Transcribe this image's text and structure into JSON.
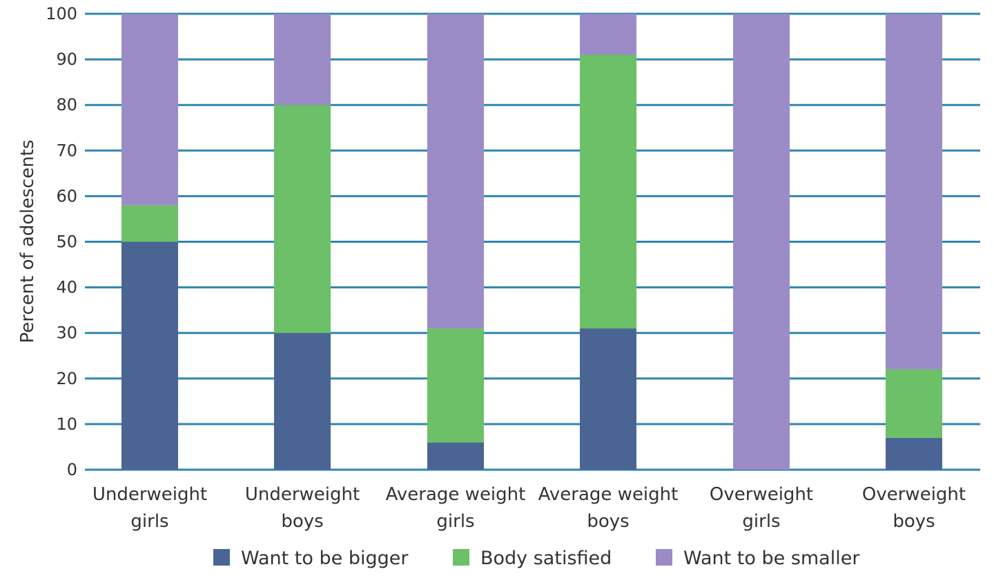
{
  "chart_data": {
    "type": "bar",
    "stacked": true,
    "title": "",
    "xlabel": "",
    "ylabel": "Percent of adolescents",
    "ylim": [
      0,
      100
    ],
    "yticks": [
      0,
      10,
      20,
      30,
      40,
      50,
      60,
      70,
      80,
      90,
      100
    ],
    "grid": true,
    "legend_position": "bottom",
    "categories": [
      [
        "Underweight",
        "girls"
      ],
      [
        "Underweight",
        "boys"
      ],
      [
        "Average weight",
        "girls"
      ],
      [
        "Average weight",
        "boys"
      ],
      [
        "Overweight",
        "girls"
      ],
      [
        "Overweight",
        "boys"
      ]
    ],
    "series": [
      {
        "name": "Want to be bigger",
        "color": "#4a6594",
        "values": [
          50,
          30,
          6,
          31,
          0,
          7
        ]
      },
      {
        "name": "Body satisfied",
        "color": "#6cc067",
        "values": [
          8,
          50,
          25,
          60,
          0,
          15
        ]
      },
      {
        "name": "Want to be smaller",
        "color": "#9b8cc7",
        "values": [
          42,
          20,
          69,
          9,
          100,
          78
        ]
      }
    ],
    "colors": {
      "grid": "#2e86b0",
      "text": "#333333"
    }
  }
}
